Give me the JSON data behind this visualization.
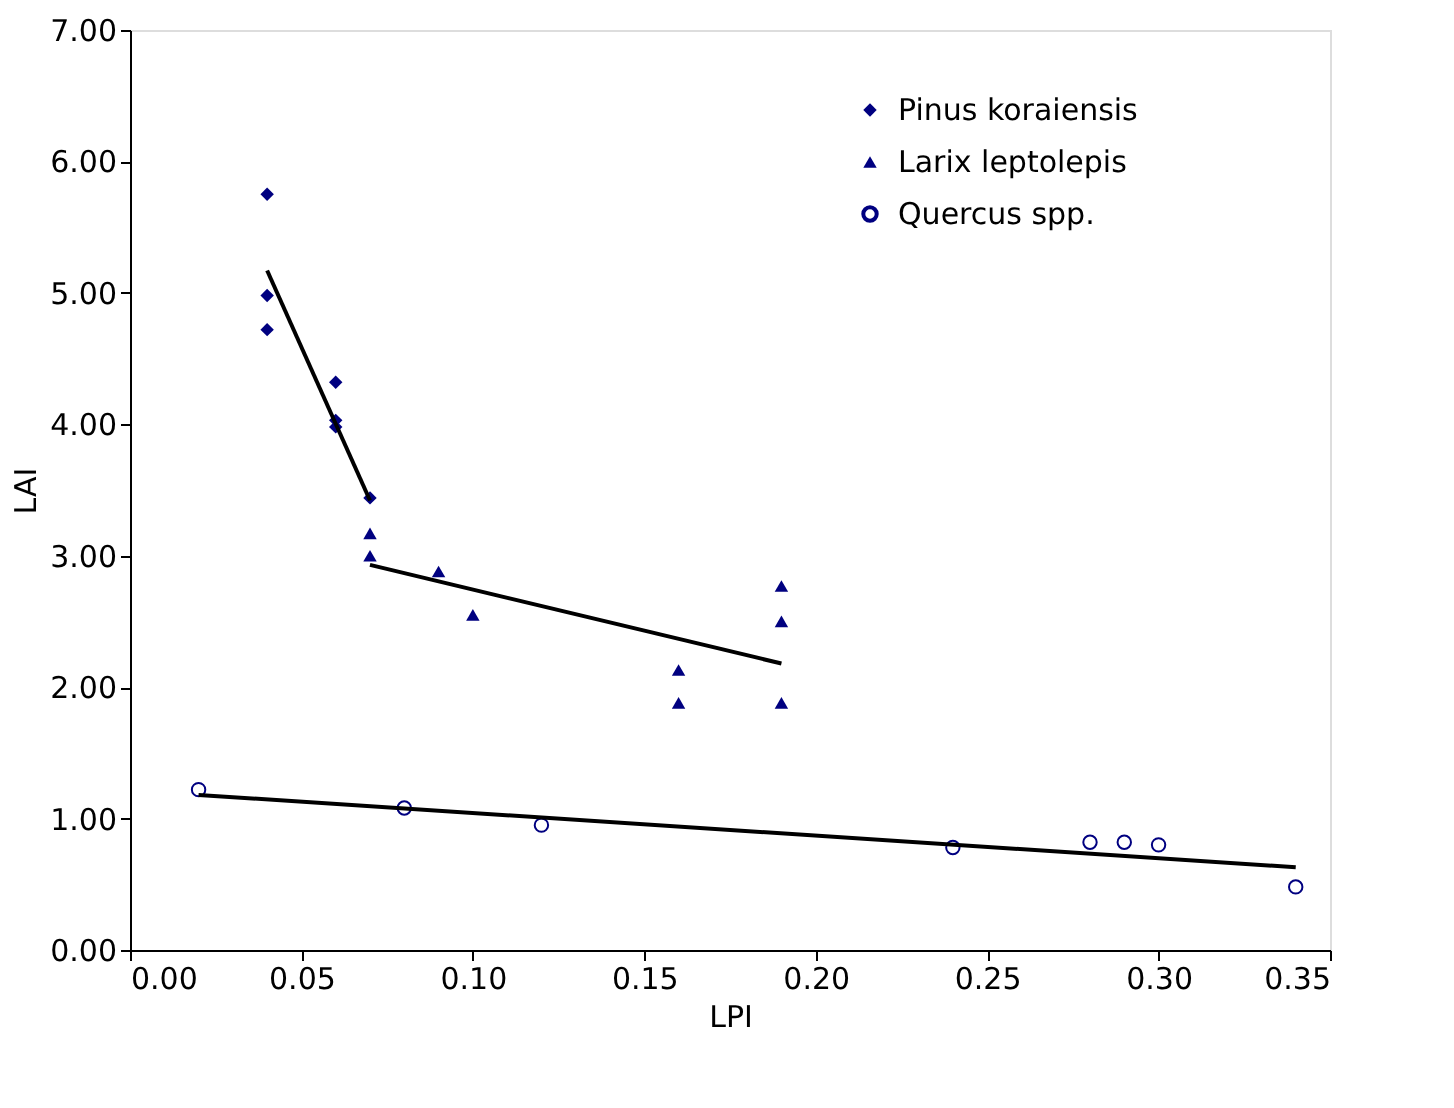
{
  "chart_data": {
    "type": "scatter",
    "xlabel": "LPI",
    "ylabel": "LAI",
    "xlim": [
      0,
      0.35
    ],
    "ylim": [
      0,
      7
    ],
    "xticks": [
      {
        "value": 0,
        "label": "0.00"
      },
      {
        "value": 0.05,
        "label": "0.05"
      },
      {
        "value": 0.1,
        "label": "0.10"
      },
      {
        "value": 0.15,
        "label": "0.15"
      },
      {
        "value": 0.2,
        "label": "0.20"
      },
      {
        "value": 0.25,
        "label": "0.25"
      },
      {
        "value": 0.3,
        "label": "0.30"
      },
      {
        "value": 0.35,
        "label": "0.35"
      }
    ],
    "yticks": [
      {
        "value": 0,
        "label": "0.00"
      },
      {
        "value": 1,
        "label": "1.00"
      },
      {
        "value": 2,
        "label": "2.00"
      },
      {
        "value": 3,
        "label": "3.00"
      },
      {
        "value": 4,
        "label": "4.00"
      },
      {
        "value": 5,
        "label": "5.00"
      },
      {
        "value": 6,
        "label": "6.00"
      },
      {
        "value": 7,
        "label": "7.00"
      }
    ],
    "grid": false,
    "legend": "top right",
    "series": [
      {
        "name": "Pinus koraiensis",
        "color": "#000080",
        "marker": "diamond",
        "x": [
          0.04,
          0.04,
          0.04,
          0.06,
          0.06,
          0.06,
          0.07
        ],
        "values": [
          5.75,
          4.98,
          4.72,
          4.32,
          4.03,
          3.98,
          3.44
        ]
      },
      {
        "name": "Larix leptolepis",
        "color": "#000080",
        "marker": "triangle",
        "x": [
          0.07,
          0.07,
          0.09,
          0.1,
          0.16,
          0.16,
          0.19,
          0.19,
          0.19
        ],
        "values": [
          3.17,
          3.0,
          2.88,
          2.55,
          2.13,
          1.88,
          2.77,
          2.5,
          1.88
        ]
      },
      {
        "name": "Quercus spp.",
        "color": "#000080",
        "marker": "circle",
        "x": [
          0.02,
          0.08,
          0.12,
          0.24,
          0.28,
          0.29,
          0.3,
          0.34
        ],
        "values": [
          1.22,
          1.08,
          0.95,
          0.78,
          0.82,
          0.82,
          0.8,
          0.48
        ]
      },
      {
        "type": "line",
        "color": "#000000",
        "x": [
          0.04,
          0.07
        ],
        "values": [
          5.17,
          3.42
        ]
      },
      {
        "type": "line",
        "color": "#000000",
        "x": [
          0.07,
          0.19
        ],
        "values": [
          2.93,
          2.18
        ]
      },
      {
        "type": "line",
        "color": "#000000",
        "x": [
          0.02,
          0.34
        ],
        "values": [
          1.18,
          0.63
        ]
      }
    ]
  }
}
